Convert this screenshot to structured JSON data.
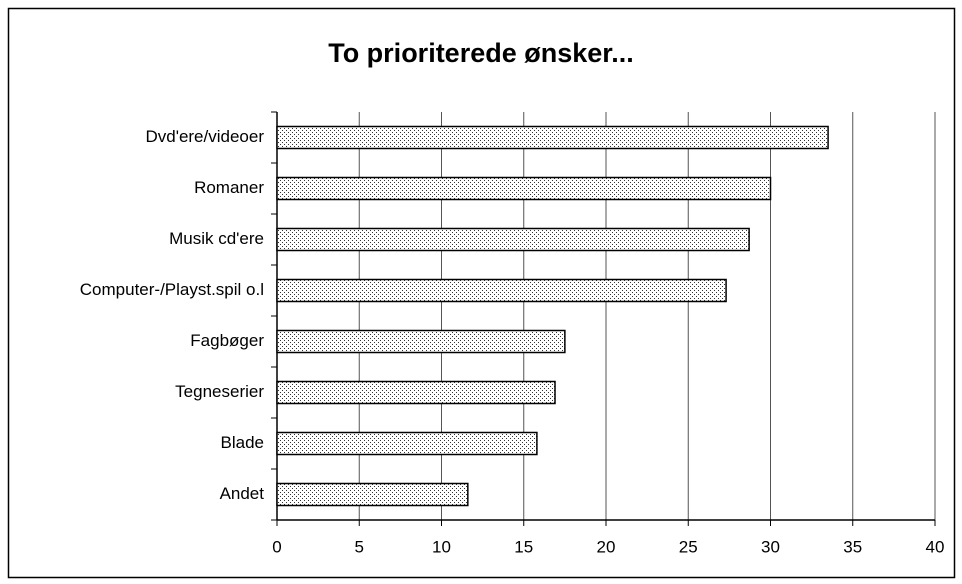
{
  "chart_data": {
    "type": "barh",
    "title": "To prioriterede ønsker...",
    "categories": [
      "Dvd'ere/videoer",
      "Romaner",
      "Musik cd'ere",
      "Computer-/Playst.spil o.l",
      "Fagbøger",
      "Tegneserier",
      "Blade",
      "Andet"
    ],
    "values": [
      33.5,
      30,
      28.7,
      27.3,
      17.5,
      16.9,
      15.8,
      11.6
    ],
    "xlim": [
      0,
      40
    ],
    "xticks": [
      0,
      5,
      10,
      15,
      20,
      25,
      30,
      35,
      40
    ],
    "grid": true
  }
}
